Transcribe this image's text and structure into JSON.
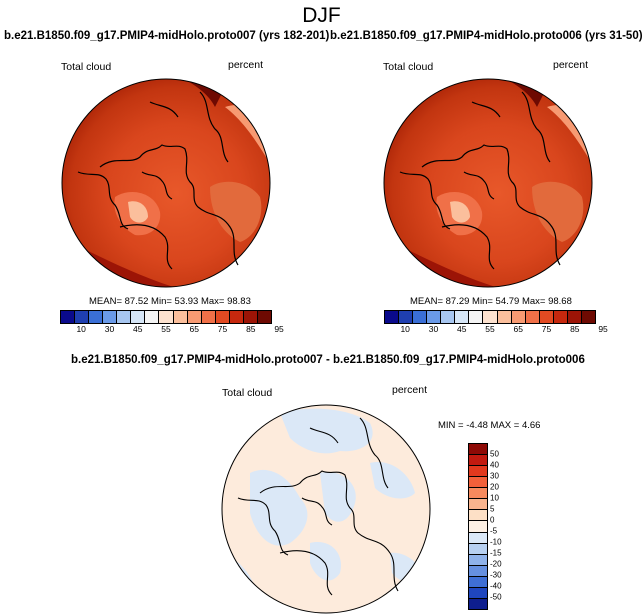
{
  "main_title": "DJF",
  "panels": [
    {
      "title": "b.e21.B1850.f09_g17.PMIP4-midHolo.proto007 (yrs 182-201)",
      "left_label": "Total cloud",
      "right_label": "percent",
      "stats": "MEAN= 87.52  Min= 53.93  Max= 98.83"
    },
    {
      "title": "b.e21.B1850.f09_g17.PMIP4-midHolo.proto006 (yrs 31-50)",
      "left_label": "Total cloud",
      "right_label": "percent",
      "stats": "MEAN= 87.29  Min= 54.79  Max= 98.68"
    }
  ],
  "colorbar_top": {
    "labels": [
      "10",
      "30",
      "45",
      "55",
      "65",
      "75",
      "85",
      "95"
    ],
    "colors": [
      "#0a0a8c",
      "#1f3fb0",
      "#3a6fd6",
      "#6a9ae8",
      "#a7c6f0",
      "#d6e6f7",
      "#f4f4f4",
      "#fde2cf",
      "#fbbf9c",
      "#f79a72",
      "#f07048",
      "#e24a22",
      "#c6280e",
      "#9c1406",
      "#6e0a02"
    ]
  },
  "diff_panel": {
    "title": "b.e21.B1850.f09_g17.PMIP4-midHolo.proto007 - b.e21.B1850.f09_g17.PMIP4-midHolo.proto006",
    "left_label": "Total cloud",
    "right_label": "percent",
    "stats": "MIN = -4.48  MAX = 4.66"
  },
  "colorbar_diff": {
    "labels": [
      "50",
      "40",
      "30",
      "20",
      "10",
      "5",
      "0",
      "-5",
      "-10",
      "-15",
      "-20",
      "-30",
      "-40",
      "-50"
    ],
    "colors": [
      "#8e0a06",
      "#c21a10",
      "#e2391e",
      "#f2603a",
      "#f78a5e",
      "#fab48e",
      "#fde0c6",
      "#fdf0e4",
      "#dbe8f7",
      "#b7d0f1",
      "#8fb2ea",
      "#6690e0",
      "#3f6fd5",
      "#1f46bf",
      "#0e1e8e"
    ]
  }
}
